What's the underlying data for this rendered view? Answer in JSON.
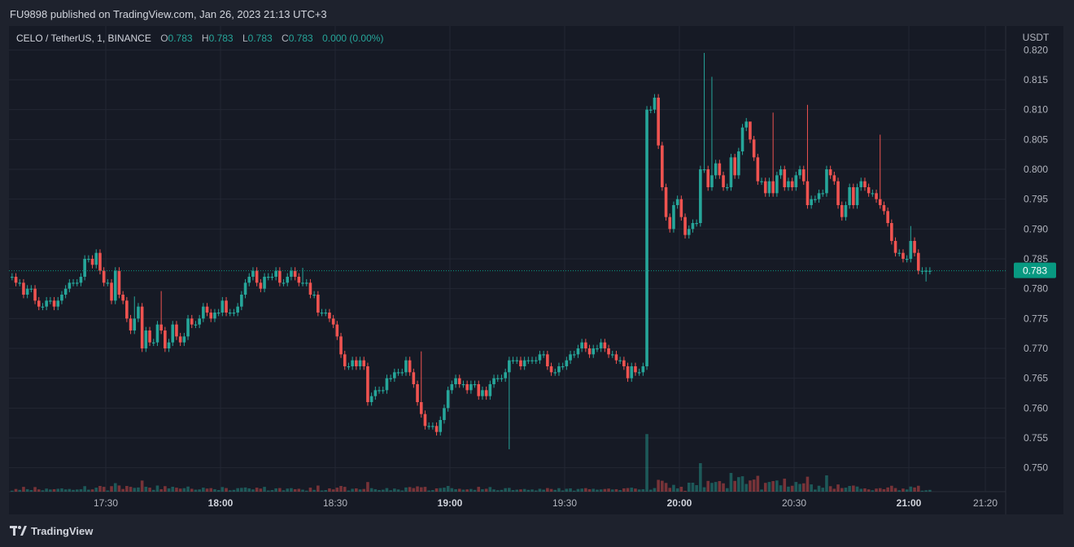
{
  "header": {
    "published": "FU9898 published on TradingView.com, Jan 26, 2023 21:13 UTC+3"
  },
  "legend": {
    "symbol": "CELO / TetherUS, 1, BINANCE",
    "open_label": "O",
    "open": "0.783",
    "high_label": "H",
    "high": "0.783",
    "low_label": "L",
    "low": "0.783",
    "close_label": "C",
    "close": "0.783",
    "change": "0.000 (0.00%)"
  },
  "footer": {
    "brand": "TradingView"
  },
  "colors": {
    "up": "#26a69a",
    "down": "#ef5350",
    "background": "#161a25",
    "grid": "#232733",
    "text": "#b2b5be",
    "price_tag": "#089981"
  },
  "chart_data": {
    "type": "candlestick",
    "currency": "USDT",
    "ylim": [
      0.746,
      0.824
    ],
    "yticks": [
      "0.820",
      "0.815",
      "0.810",
      "0.805",
      "0.800",
      "0.795",
      "0.790",
      "0.785",
      "0.780",
      "0.775",
      "0.770",
      "0.765",
      "0.760",
      "0.755",
      "0.750"
    ],
    "xticks": [
      "17:30",
      "18:00",
      "18:30",
      "19:00",
      "19:30",
      "20:00",
      "20:30",
      "21:00",
      "21:20"
    ],
    "x_start": "17:05",
    "last_price": "0.783",
    "closes": [
      0.782,
      0.781,
      0.781,
      0.779,
      0.78,
      0.78,
      0.778,
      0.777,
      0.777,
      0.778,
      0.778,
      0.777,
      0.778,
      0.779,
      0.78,
      0.781,
      0.781,
      0.781,
      0.782,
      0.785,
      0.785,
      0.784,
      0.786,
      0.783,
      0.781,
      0.781,
      0.778,
      0.783,
      0.779,
      0.778,
      0.775,
      0.773,
      0.775,
      0.777,
      0.77,
      0.773,
      0.771,
      0.771,
      0.774,
      0.773,
      0.77,
      0.771,
      0.774,
      0.772,
      0.771,
      0.772,
      0.775,
      0.774,
      0.774,
      0.775,
      0.777,
      0.776,
      0.775,
      0.776,
      0.776,
      0.778,
      0.776,
      0.776,
      0.776,
      0.777,
      0.779,
      0.781,
      0.782,
      0.783,
      0.781,
      0.78,
      0.782,
      0.782,
      0.782,
      0.783,
      0.781,
      0.781,
      0.782,
      0.783,
      0.782,
      0.781,
      0.781,
      0.781,
      0.779,
      0.779,
      0.776,
      0.776,
      0.776,
      0.775,
      0.774,
      0.772,
      0.769,
      0.767,
      0.767,
      0.768,
      0.767,
      0.768,
      0.767,
      0.761,
      0.762,
      0.763,
      0.763,
      0.763,
      0.765,
      0.765,
      0.766,
      0.766,
      0.766,
      0.768,
      0.766,
      0.764,
      0.761,
      0.759,
      0.757,
      0.757,
      0.757,
      0.756,
      0.758,
      0.76,
      0.763,
      0.764,
      0.765,
      0.764,
      0.764,
      0.763,
      0.764,
      0.764,
      0.762,
      0.763,
      0.762,
      0.764,
      0.765,
      0.765,
      0.765,
      0.766,
      0.768,
      0.768,
      0.768,
      0.767,
      0.768,
      0.768,
      0.768,
      0.768,
      0.769,
      0.769,
      0.767,
      0.766,
      0.766,
      0.767,
      0.767,
      0.768,
      0.769,
      0.769,
      0.77,
      0.771,
      0.77,
      0.769,
      0.77,
      0.77,
      0.771,
      0.77,
      0.769,
      0.769,
      0.768,
      0.768,
      0.767,
      0.765,
      0.767,
      0.766,
      0.766,
      0.767,
      0.81,
      0.81,
      0.812,
      0.804,
      0.797,
      0.792,
      0.79,
      0.794,
      0.795,
      0.792,
      0.789,
      0.79,
      0.791,
      0.791,
      0.8,
      0.8,
      0.797,
      0.799,
      0.801,
      0.799,
      0.797,
      0.797,
      0.802,
      0.799,
      0.803,
      0.807,
      0.808,
      0.805,
      0.802,
      0.798,
      0.798,
      0.796,
      0.798,
      0.796,
      0.799,
      0.8,
      0.797,
      0.798,
      0.797,
      0.799,
      0.8,
      0.798,
      0.794,
      0.795,
      0.795,
      0.796,
      0.796,
      0.8,
      0.799,
      0.798,
      0.794,
      0.792,
      0.794,
      0.797,
      0.794,
      0.797,
      0.798,
      0.797,
      0.796,
      0.796,
      0.795,
      0.794,
      0.793,
      0.791,
      0.788,
      0.786,
      0.786,
      0.785,
      0.785,
      0.788,
      0.786,
      0.783,
      0.783,
      0.783,
      0.783
    ],
    "spikes": [
      {
        "time_index": 32,
        "high": 0.7787
      },
      {
        "time_index": 39,
        "high": 0.7796
      },
      {
        "time_index": 76,
        "high": 0.7835
      },
      {
        "time_index": 107,
        "high": 0.7695
      },
      {
        "time_index": 130,
        "low": 0.7531
      },
      {
        "time_index": 181,
        "high": 0.8195
      },
      {
        "time_index": 183,
        "high": 0.8155
      },
      {
        "time_index": 193,
        "high": 0.8066
      },
      {
        "time_index": 199,
        "high": 0.8095
      },
      {
        "time_index": 208,
        "high": 0.8108
      },
      {
        "time_index": 227,
        "high": 0.8058
      },
      {
        "time_index": 235,
        "high": 0.7905
      },
      {
        "time_index": 239,
        "low": 0.7812
      }
    ]
  }
}
